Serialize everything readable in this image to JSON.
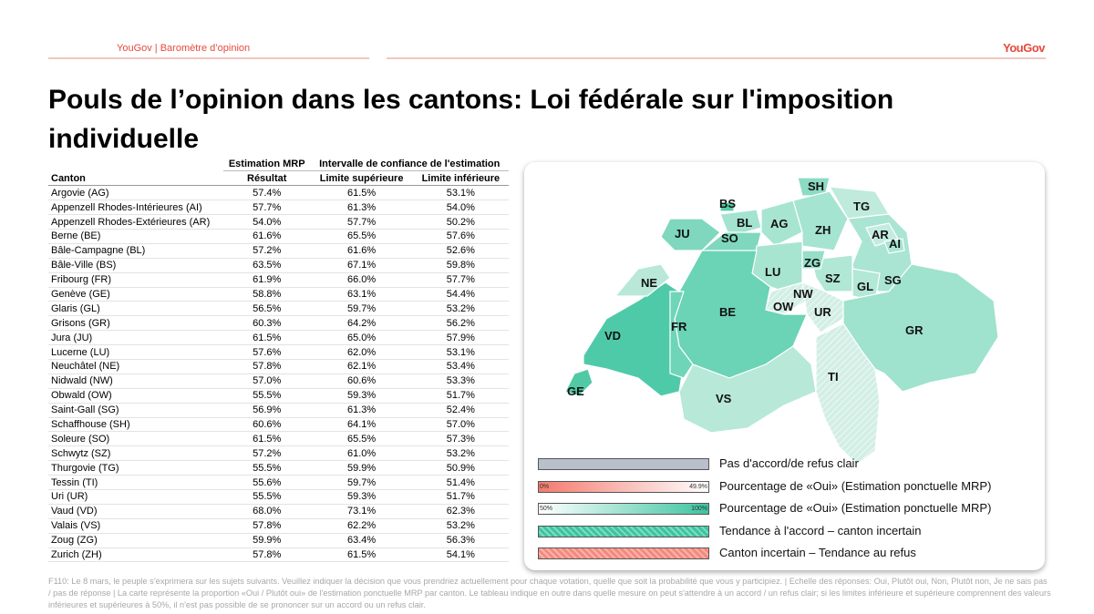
{
  "header": {
    "left": "YouGov | Baromètre d’opinion",
    "logo": "YouGov"
  },
  "title": "Pouls de l’opinion dans les cantons: Loi fédérale sur l'imposition individuelle",
  "chart_data": {
    "type": "table",
    "title": "Pouls de l’opinion dans les cantons: Loi fédérale sur l'imposition individuelle",
    "group_headers": [
      "Estimation MRP",
      "Intervalle de confiance de l'estimation"
    ],
    "columns": [
      "Canton",
      "Résultat",
      "Limite supérieure",
      "Limite inférieure"
    ],
    "rows": [
      [
        "Argovie (AG)",
        "57.4%",
        "61.5%",
        "53.1%"
      ],
      [
        "Appenzell Rhodes-Intérieures (AI)",
        "57.7%",
        "61.3%",
        "54.0%"
      ],
      [
        "Appenzell Rhodes-Extérieures (AR)",
        "54.0%",
        "57.7%",
        "50.2%"
      ],
      [
        "Berne (BE)",
        "61.6%",
        "65.5%",
        "57.6%"
      ],
      [
        "Bâle-Campagne (BL)",
        "57.2%",
        "61.6%",
        "52.6%"
      ],
      [
        "Bâle-Ville (BS)",
        "63.5%",
        "67.1%",
        "59.8%"
      ],
      [
        "Fribourg (FR)",
        "61.9%",
        "66.0%",
        "57.7%"
      ],
      [
        "Genève (GE)",
        "58.8%",
        "63.1%",
        "54.4%"
      ],
      [
        "Glaris (GL)",
        "56.5%",
        "59.7%",
        "53.2%"
      ],
      [
        "Grisons (GR)",
        "60.3%",
        "64.2%",
        "56.2%"
      ],
      [
        "Jura (JU)",
        "61.5%",
        "65.0%",
        "57.9%"
      ],
      [
        "Lucerne (LU)",
        "57.6%",
        "62.0%",
        "53.1%"
      ],
      [
        "Neuchâtel (NE)",
        "57.8%",
        "62.1%",
        "53.4%"
      ],
      [
        "Nidwald (NW)",
        "57.0%",
        "60.6%",
        "53.3%"
      ],
      [
        "Obwald (OW)",
        "55.5%",
        "59.3%",
        "51.7%"
      ],
      [
        "Saint-Gall (SG)",
        "56.9%",
        "61.3%",
        "52.4%"
      ],
      [
        "Schaffhouse (SH)",
        "60.6%",
        "64.1%",
        "57.0%"
      ],
      [
        "Soleure (SO)",
        "61.5%",
        "65.5%",
        "57.3%"
      ],
      [
        "Schwytz (SZ)",
        "57.2%",
        "61.0%",
        "53.2%"
      ],
      [
        "Thurgovie (TG)",
        "55.5%",
        "59.9%",
        "50.9%"
      ],
      [
        "Tessin (TI)",
        "55.6%",
        "59.7%",
        "51.4%"
      ],
      [
        "Uri (UR)",
        "55.5%",
        "59.3%",
        "51.7%"
      ],
      [
        "Vaud (VD)",
        "68.0%",
        "73.1%",
        "62.3%"
      ],
      [
        "Valais (VS)",
        "57.8%",
        "62.2%",
        "53.2%"
      ],
      [
        "Zoug (ZG)",
        "59.9%",
        "63.4%",
        "56.3%"
      ],
      [
        "Zurich (ZH)",
        "57.8%",
        "61.5%",
        "54.1%"
      ]
    ]
  },
  "map": {
    "labels": [
      "SH",
      "BS",
      "TG",
      "BL",
      "AG",
      "ZH",
      "JU",
      "SO",
      "AR",
      "AI",
      "ZG",
      "LU",
      "SZ",
      "SG",
      "NE",
      "GL",
      "NW",
      "OW",
      "UR",
      "BE",
      "GR",
      "FR",
      "VD",
      "TI",
      "GE",
      "VS"
    ],
    "colors": {
      "scale_low": "#ffffff",
      "scale_high": "#3cc4a0",
      "refuse_low": "#f47a6e",
      "clear_no": "#b9bfcc"
    }
  },
  "legend": [
    {
      "label": "Pas d'accord/de refus clair"
    },
    {
      "label": "Pourcentage de «Oui» (Estimation ponctuelle MRP)",
      "min": "0%",
      "max": "49.9%"
    },
    {
      "label": "Pourcentage de «Oui» (Estimation ponctuelle MRP)",
      "min": "50%",
      "max": "100%"
    },
    {
      "label": "Tendance à l'accord – canton incertain"
    },
    {
      "label": "Canton incertain – Tendance au refus"
    }
  ],
  "footnote": "F110: Le 8 mars, le peuple s’exprimera sur les sujets suivants. Veuillez indiquer la décision que vous prendriez actuellement pour chaque votation, quelle que soit la probabilité que vous y participiez. | Echelle des réponses: Oui, Plutôt oui, Non, Plutôt non, Je ne sais pas / pas de réponse | La carte représente la proportion «Oui / Plutôt oui» de l'estimation ponctuelle MRP par canton. Le tableau indique en outre dans quelle mesure on peut s'attendre à un accord / un refus clair; si les limites inférieure et supérieure comprennent des valeurs inférieures et supérieures à 50%, il n'est pas possible de se prononcer sur un accord ou un refus clair."
}
